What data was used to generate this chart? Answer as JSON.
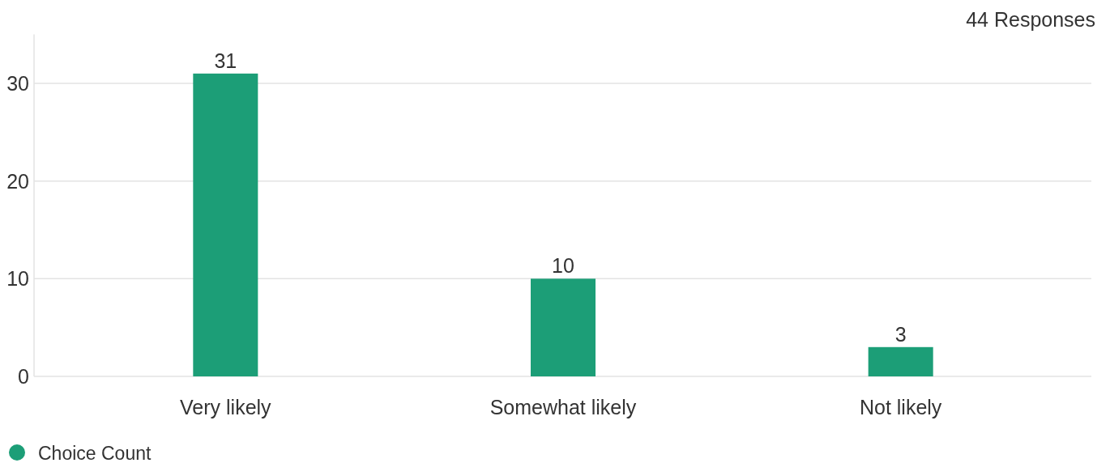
{
  "chart_data": {
    "type": "bar",
    "subtitle": "44 Responses",
    "categories": [
      "Very likely",
      "Somewhat likely",
      "Not likely"
    ],
    "series": [
      {
        "name": "Choice Count",
        "color": "#1c9e77",
        "values": [
          31,
          10,
          3
        ]
      }
    ],
    "ylim": [
      0,
      35
    ],
    "yticks": [
      0,
      10,
      20,
      30
    ],
    "grid": "y",
    "data_labels": true,
    "legend": "bottom left"
  }
}
